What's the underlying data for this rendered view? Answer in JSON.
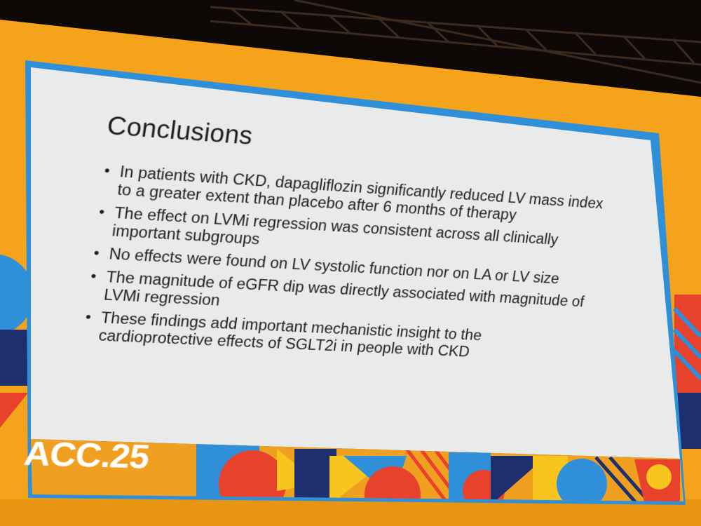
{
  "slide": {
    "title": "Conclusions",
    "bullets": [
      "In patients with CKD, dapagliflozin significantly reduced LV mass index to a greater extent than placebo after 6 months of therapy",
      "The effect on LVMi regression was consistent across all clinically important subgroups",
      "No effects were found on LV systolic function nor on LA or LV size",
      "The magnitude of eGFR dip was directly associated with magnitude of LVMi regression",
      "These findings add important mechanistic insight to the cardioprotective effects of SGLT2i in people with CKD"
    ]
  },
  "footer": {
    "brand": "ACC.25"
  },
  "colors": {
    "backdrop_orange": "#f5a31a",
    "screen_border_blue": "#2f8fd8",
    "slide_background": "#e9ebea",
    "text": "#1d1d1d",
    "band_orange": "#f0a020",
    "accent_red": "#e8412c",
    "accent_yellow": "#f7c51e",
    "accent_navy": "#1d2f6f",
    "accent_blue": "#2f8fd8"
  }
}
